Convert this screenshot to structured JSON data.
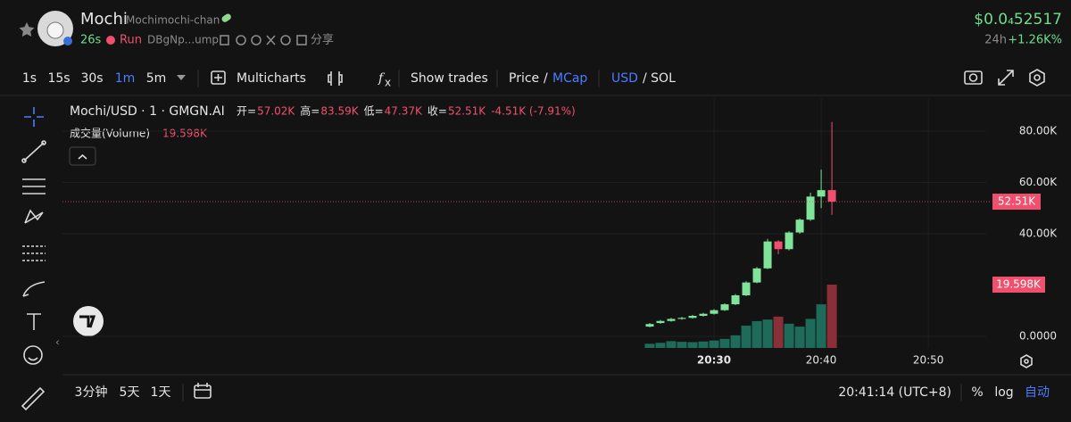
{
  "header": {
    "name": "Mochi",
    "handle": "Mochimochi-chan",
    "age": "26s",
    "status": "Run",
    "address": "DBgNp...ump",
    "share": "分享",
    "price": "$0.0₄52517",
    "change_period": "24h",
    "change": "+1.26K%"
  },
  "toolbar": {
    "intervals": [
      "1s",
      "15s",
      "30s",
      "1m",
      "5m"
    ],
    "selected": 3,
    "multicharts": "Multicharts",
    "show_trades": "Show trades",
    "price": "Price",
    "price_sep": "/",
    "mcap": "MCap",
    "usd": "USD",
    "sol": "/ SOL"
  },
  "chart": {
    "type": "candlestick",
    "title": "Mochi/USD · 1 · GMGN.AI",
    "ohlc": [
      {
        "key": "开=",
        "value": "57.02K"
      },
      {
        "key": "高=",
        "value": "83.59K"
      },
      {
        "key": "低=",
        "value": "47.37K"
      },
      {
        "key": "收=",
        "value": "52.51K"
      }
    ],
    "change": "-4.51K (-7.91%)",
    "volume_title": "成交量(Volume)",
    "x": [
      24,
      25,
      26,
      27,
      28,
      29,
      30,
      31,
      32,
      33,
      34,
      35,
      36,
      37,
      38,
      39,
      40,
      41
    ],
    "open": [
      3800,
      5200,
      6000,
      6800,
      7200,
      8000,
      8800,
      10200,
      12500,
      16000,
      21000,
      26500,
      37000,
      34000,
      40500,
      45500,
      54500,
      57020
    ],
    "high": [
      5200,
      6400,
      7200,
      7600,
      8400,
      9200,
      10600,
      12900,
      16500,
      21500,
      27000,
      38000,
      37500,
      41000,
      46000,
      56000,
      65000,
      83590
    ],
    "low": [
      3500,
      4900,
      5700,
      6500,
      6900,
      7700,
      8500,
      9900,
      12200,
      15700,
      20700,
      26200,
      32000,
      33500,
      40000,
      45000,
      50000,
      47370
    ],
    "close": [
      4800,
      6000,
      6800,
      7200,
      8000,
      8800,
      10200,
      12500,
      16000,
      21000,
      26500,
      37000,
      34000,
      40500,
      45500,
      54500,
      57000,
      52510
    ],
    "volume": [
      1300,
      1600,
      2100,
      1900,
      1800,
      2000,
      2300,
      2800,
      3900,
      6900,
      8300,
      8800,
      9700,
      7500,
      6600,
      9000,
      13500,
      19598
    ],
    "up_color": "#7fe39a",
    "down_color": "#f0506e",
    "volume_up_color": "#1d6b58",
    "volume_down_color": "#8a2f38",
    "xlim": [
      -30.8,
      55.4
    ],
    "xticks": [
      {
        "value": 30,
        "label": "20:30"
      },
      {
        "value": 40,
        "label": "20:40"
      },
      {
        "value": 50,
        "label": "20:50"
      }
    ],
    "ylim": [
      -4520,
      92870
    ],
    "yticks": [
      {
        "value": 0,
        "label": "0.0000"
      },
      {
        "value": 40000,
        "label": "40.00K"
      },
      {
        "value": 60000,
        "label": "60.00K"
      },
      {
        "value": 80000,
        "label": "80.00K"
      }
    ],
    "volume_lim": [
      0,
      77300
    ],
    "last_price": {
      "value": 52510,
      "label": "52.51K"
    },
    "last_volume": {
      "value": 19598,
      "label": "19.598K"
    }
  },
  "footer": {
    "ranges": [
      "3分钟",
      "5天",
      "1天"
    ],
    "time": "20:41:14 (UTC+8)",
    "percent": "%",
    "log": "log",
    "auto": "自动"
  }
}
